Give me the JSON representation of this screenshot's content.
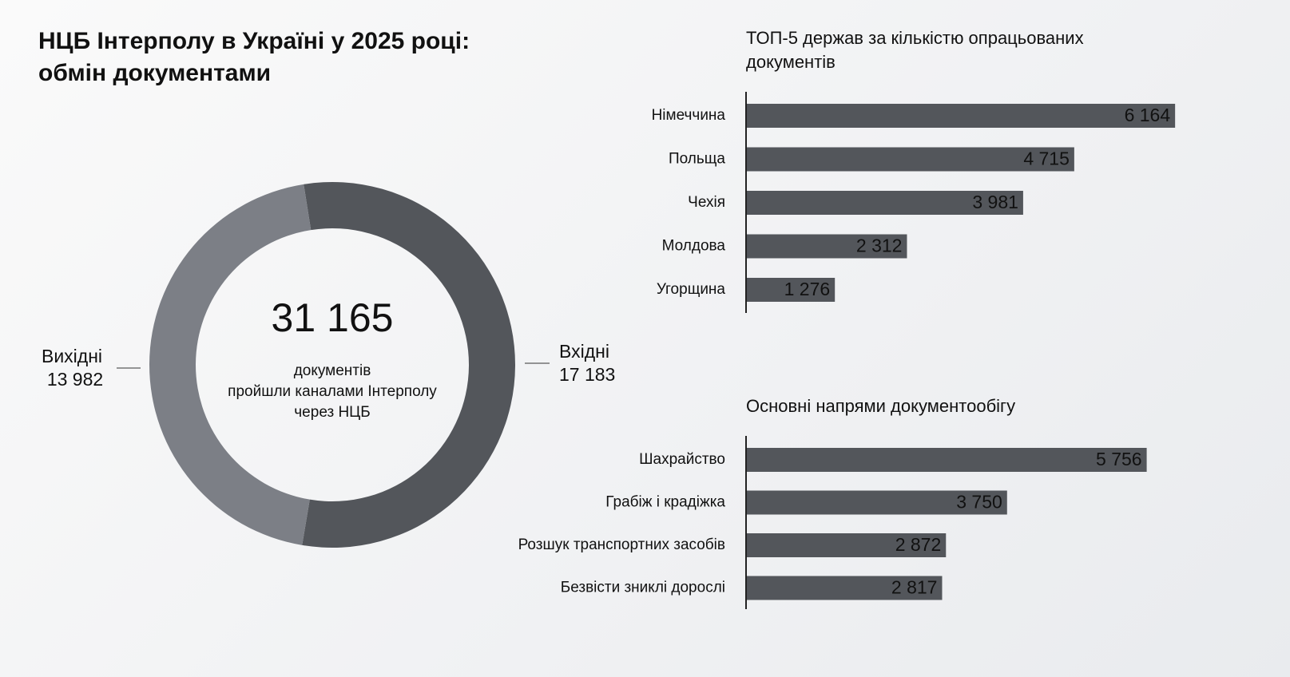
{
  "title": "НЦБ Інтерполу в Україні у 2025 році: обмін документами",
  "chart_data": [
    {
      "type": "donut",
      "categories": [
        "Вихідні",
        "Вхідні"
      ],
      "values": [
        13982,
        17183
      ],
      "value_labels": [
        "13 982",
        "17 183"
      ],
      "colors": [
        "#7c7f86",
        "#53565b"
      ],
      "total": 31165,
      "total_label": "31 165",
      "center_text": [
        "документів",
        "пройшли каналами Інтерполу",
        "через НЦБ"
      ]
    },
    {
      "type": "bar",
      "orientation": "horizontal",
      "title": "ТОП-5 держав за кількістю опрацьованих документів",
      "categories": [
        "Німеччина",
        "Польща",
        "Чехія",
        "Молдова",
        "Угорщина"
      ],
      "values": [
        6164,
        4715,
        3981,
        2312,
        1276
      ],
      "value_labels": [
        "6 164",
        "4 715",
        "3 981",
        "2 312",
        "1 276"
      ],
      "color": "#53565b",
      "xlim": [
        0,
        7000
      ]
    },
    {
      "type": "bar",
      "orientation": "horizontal",
      "title": "Основні напрями документообігу",
      "categories": [
        "Шахрайство",
        "Грабіж і крадіжка",
        "Розшук транспортних засобів",
        "Безвісти зниклі дорослі"
      ],
      "values": [
        5756,
        3750,
        2872,
        2817
      ],
      "value_labels": [
        "5 756",
        "3 750",
        "2 872",
        "2 817"
      ],
      "color": "#53565b",
      "xlim": [
        0,
        7000
      ]
    }
  ]
}
